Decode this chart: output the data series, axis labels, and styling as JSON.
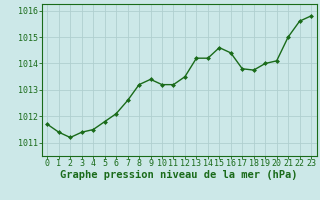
{
  "x": [
    0,
    1,
    2,
    3,
    4,
    5,
    6,
    7,
    8,
    9,
    10,
    11,
    12,
    13,
    14,
    15,
    16,
    17,
    18,
    19,
    20,
    21,
    22,
    23
  ],
  "y": [
    1011.7,
    1011.4,
    1011.2,
    1011.4,
    1011.5,
    1011.8,
    1012.1,
    1012.6,
    1013.2,
    1013.4,
    1013.2,
    1013.2,
    1013.5,
    1014.2,
    1014.2,
    1014.6,
    1014.4,
    1013.8,
    1013.75,
    1014.0,
    1014.1,
    1015.0,
    1015.6,
    1015.8
  ],
  "line_color": "#1a6b1a",
  "marker_color": "#1a6b1a",
  "bg_color": "#cce8e8",
  "grid_color": "#b0cfcf",
  "xlabel": "Graphe pression niveau de la mer (hPa)",
  "xlabel_color": "#1a6b1a",
  "tick_color": "#1a6b1a",
  "ylim": [
    1010.5,
    1016.25
  ],
  "yticks": [
    1011,
    1012,
    1013,
    1014,
    1015,
    1016
  ],
  "xticks": [
    0,
    1,
    2,
    3,
    4,
    5,
    6,
    7,
    8,
    9,
    10,
    11,
    12,
    13,
    14,
    15,
    16,
    17,
    18,
    19,
    20,
    21,
    22,
    23
  ],
  "tick_fontsize": 6.0,
  "xlabel_fontsize": 7.5,
  "linewidth": 1.0,
  "markersize": 2.5
}
